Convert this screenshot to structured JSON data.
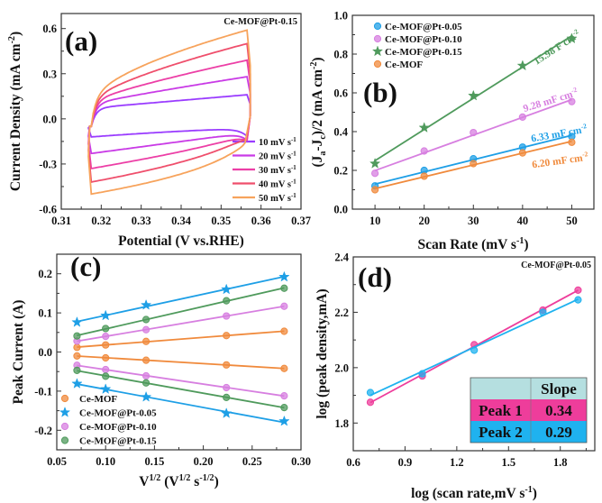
{
  "chart_data": [
    {
      "panel": "(a)",
      "type": "line",
      "annotation": "Ce-MOF@Pt-0.15",
      "xlabel": "Potential (V vs.RHE)",
      "ylabel": "Current Density (mA cm^{-2})",
      "xlim": [
        0.31,
        0.37
      ],
      "ylim": [
        -0.6,
        0.7
      ],
      "xticks": [
        0.31,
        0.32,
        0.33,
        0.34,
        0.35,
        0.36,
        0.37
      ],
      "yticks": [
        -0.6,
        -0.3,
        0.0,
        0.3,
        0.6
      ],
      "potential_window": [
        0.3175,
        0.3565
      ],
      "legend_position": "bottom-right",
      "series": [
        {
          "name": "10 mV s^{-1}",
          "color": "#9a3cff",
          "anodic_max": 0.16,
          "cathodic_min": -0.12
        },
        {
          "name": "20 mV s^{-1}",
          "color": "#c93be6",
          "anodic_max": 0.28,
          "cathodic_min": -0.23
        },
        {
          "name": "30 mV s^{-1}",
          "color": "#ec3fa6",
          "anodic_max": 0.39,
          "cathodic_min": -0.33
        },
        {
          "name": "40 mV s^{-1}",
          "color": "#ef4f6c",
          "anodic_max": 0.5,
          "cathodic_min": -0.42
        },
        {
          "name": "50 mV s^{-1}",
          "color": "#f7a35c",
          "anodic_max": 0.59,
          "cathodic_min": -0.5
        }
      ]
    },
    {
      "panel": "(b)",
      "type": "scatter",
      "xlabel": "Scan Rate (mV s^{-1})",
      "ylabel": "(J_{a}-J_{c})/2 (mA cm^{-2})",
      "xlim": [
        5.4,
        54.5
      ],
      "ylim": [
        0,
        1.0
      ],
      "xticks": [
        10,
        20,
        30,
        40,
        50
      ],
      "yticks": [
        0.0,
        0.2,
        0.4,
        0.6,
        0.8,
        1.0
      ],
      "legend_position": "top-left",
      "x": [
        10,
        20,
        30,
        40,
        50
      ],
      "series": [
        {
          "name": "Ce-MOF@Pt-0.05",
          "color": "#1e9fe6",
          "marker": "circle",
          "values": [
            0.12,
            0.2,
            0.26,
            0.32,
            0.375
          ],
          "fit_label": "6.33 mF cm^{-2}"
        },
        {
          "name": "Ce-MOF@Pt-0.10",
          "color": "#d77fe0",
          "marker": "circle",
          "values": [
            0.185,
            0.3,
            0.395,
            0.475,
            0.555
          ],
          "fit_label": "9.28 mF cm^{-2}"
        },
        {
          "name": "Ce-MOF@Pt-0.15",
          "color": "#4f9a5c",
          "marker": "star",
          "values": [
            0.235,
            0.42,
            0.585,
            0.74,
            0.88
          ],
          "fit_label": "15.98 F cm^{-2}"
        },
        {
          "name": "Ce-MOF",
          "color": "#f08a3c",
          "marker": "circle",
          "values": [
            0.1,
            0.17,
            0.235,
            0.29,
            0.345
          ],
          "fit_label": "6.20 mF cm^{-2}"
        }
      ]
    },
    {
      "panel": "(c)",
      "type": "scatter",
      "xlabel": "V^{1/2} (V^{1/2} s^{-1/2})",
      "ylabel": "Peak Current (A)",
      "xlim": [
        0.05,
        0.3
      ],
      "ylim": [
        -0.25,
        0.25
      ],
      "xticks": [
        0.05,
        0.1,
        0.15,
        0.2,
        0.25,
        0.3
      ],
      "yticks": [
        -0.2,
        -0.1,
        0.0,
        0.1,
        0.2
      ],
      "legend_position": "bottom-left",
      "x": [
        0.0707,
        0.1,
        0.1414,
        0.2236,
        0.2828
      ],
      "series": [
        {
          "name": "Ce-MOF",
          "color": "#f08a3c",
          "marker": "circle",
          "anodic": [
            0.012,
            0.018,
            0.027,
            0.042,
            0.053
          ],
          "cathodic": [
            -0.01,
            -0.015,
            -0.021,
            -0.033,
            -0.042
          ]
        },
        {
          "name": "Ce-MOF@Pt-0.05",
          "color": "#1e9fe6",
          "marker": "star",
          "anodic": [
            0.076,
            0.093,
            0.12,
            0.16,
            0.192
          ],
          "cathodic": [
            -0.081,
            -0.095,
            -0.115,
            -0.157,
            -0.177
          ]
        },
        {
          "name": "Ce-MOF@Pt-0.10",
          "color": "#d77fe0",
          "marker": "circle",
          "anodic": [
            0.028,
            0.04,
            0.057,
            0.092,
            0.117
          ],
          "cathodic": [
            -0.034,
            -0.045,
            -0.061,
            -0.091,
            -0.112
          ]
        },
        {
          "name": "Ce-MOF@Pt-0.15",
          "color": "#4f9a5c",
          "marker": "circle",
          "anodic": [
            0.041,
            0.06,
            0.083,
            0.131,
            0.163
          ],
          "cathodic": [
            -0.047,
            -0.062,
            -0.079,
            -0.116,
            -0.142
          ]
        }
      ]
    },
    {
      "panel": "(d)",
      "type": "scatter",
      "annotation": "Ce-MOF@Pt-0.05",
      "xlabel": "log (scan rate,mV s^{-1})",
      "ylabel": "log (peak density,mA)",
      "xlim": [
        0.6,
        2.0
      ],
      "ylim": [
        1.7,
        2.4
      ],
      "xticks": [
        0.6,
        0.9,
        1.2,
        1.5,
        1.8
      ],
      "yticks": [
        1.8,
        2.0,
        2.2,
        2.4
      ],
      "x": [
        0.699,
        1.0,
        1.301,
        1.699,
        1.903
      ],
      "series": [
        {
          "name": "Peak 1",
          "color": "#ee3d9b",
          "values": [
            1.875,
            1.97,
            2.083,
            2.208,
            2.28
          ]
        },
        {
          "name": "Peak 2",
          "color": "#1fb2ef",
          "values": [
            1.91,
            1.978,
            2.063,
            2.2,
            2.245
          ]
        }
      ],
      "table": {
        "header": [
          "",
          "Slope"
        ],
        "header_color": "#b5dfe0",
        "rows": [
          {
            "label": "Peak 1",
            "slope": "0.34",
            "color": "#ee3d9b"
          },
          {
            "label": "Peak 2",
            "slope": "0.29",
            "color": "#1fb2ef"
          }
        ]
      }
    }
  ]
}
